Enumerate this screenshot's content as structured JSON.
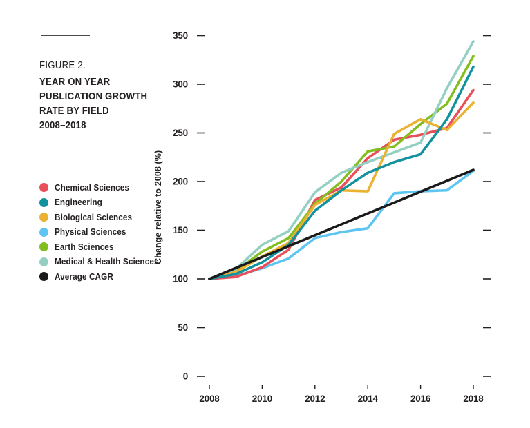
{
  "figure": {
    "label": "FIGURE 2.",
    "title_lines": [
      "YEAR ON YEAR",
      "PUBLICATION GROWTH",
      "RATE BY FIELD",
      "2008–2018"
    ]
  },
  "colors": {
    "text": "#231F20",
    "rule": "#4A4A4A",
    "background": "#FFFFFF"
  },
  "chart_data": {
    "type": "line",
    "title": "Figure 2. Year on year publication growth rate by field 2008–2018",
    "x": [
      2008,
      2009,
      2010,
      2011,
      2012,
      2013,
      2014,
      2015,
      2016,
      2017,
      2018
    ],
    "x_tick_labels": [
      "2008",
      "2010",
      "2012",
      "2014",
      "2016",
      "2018"
    ],
    "xlabel": "",
    "ylabel": "Change relative to 2008 (%)",
    "ylim": [
      0,
      350
    ],
    "y_ticks": [
      0,
      50,
      100,
      150,
      200,
      250,
      300,
      350
    ],
    "grid": false,
    "legend_position": "left",
    "series": [
      {
        "name": "Chemical Sciences",
        "color": "#E84F58",
        "values": [
          100,
          102,
          112,
          130,
          181,
          194,
          224,
          243,
          248,
          255,
          294
        ]
      },
      {
        "name": "Engineering",
        "color": "#12929F",
        "values": [
          100,
          105,
          117,
          135,
          170,
          191,
          209,
          220,
          228,
          264,
          318
        ]
      },
      {
        "name": "Biological Sciences",
        "color": "#EBB231",
        "values": [
          100,
          107,
          123,
          137,
          176,
          191,
          190,
          249,
          264,
          253,
          281
        ]
      },
      {
        "name": "Physical Sciences",
        "color": "#5EC5F2",
        "values": [
          100,
          103,
          111,
          121,
          142,
          148,
          152,
          188,
          190,
          191,
          211
        ]
      },
      {
        "name": "Earth Sciences",
        "color": "#83BE20",
        "values": [
          100,
          108,
          128,
          142,
          177,
          200,
          231,
          236,
          259,
          280,
          329
        ]
      },
      {
        "name": "Medical & Health Sciences",
        "color": "#93CFC3",
        "values": [
          100,
          110,
          135,
          149,
          189,
          209,
          220,
          230,
          240,
          296,
          344
        ]
      },
      {
        "name": "Average CAGR",
        "color": "#1A1A1A",
        "values": [
          100,
          111.2,
          122.4,
          133.6,
          144.8,
          156,
          167.2,
          178.4,
          189.6,
          200.8,
          212
        ]
      }
    ],
    "draw_order": [
      3,
      0,
      4,
      5,
      2,
      1,
      6
    ]
  }
}
